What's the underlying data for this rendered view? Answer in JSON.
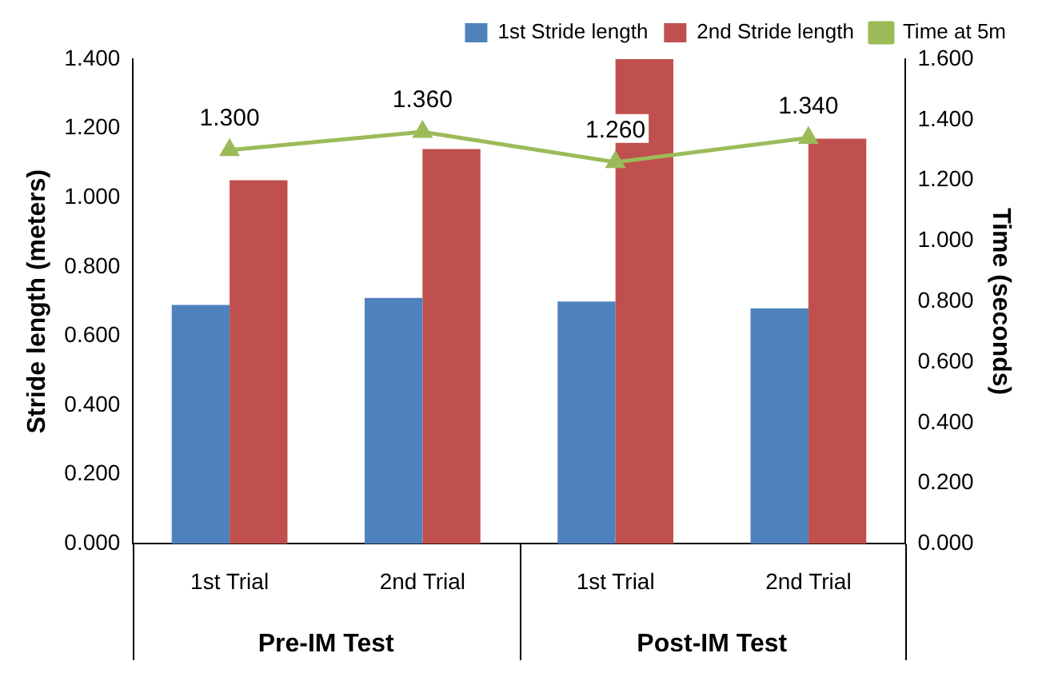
{
  "chart_data": {
    "type": "bar",
    "ylabel": "Stride length (meters)",
    "y2label": "Time (seconds)",
    "categories": [
      "1st Trial",
      "2nd Trial",
      "1st Trial",
      "2nd Trial"
    ],
    "annotations": [
      "Pre-IM Test",
      "Post-IM Test"
    ],
    "series": [
      {
        "name": "1st Stride length",
        "color": "#4f81bd",
        "values": [
          0.69,
          0.71,
          0.7,
          0.68
        ]
      },
      {
        "name": "2nd Stride length",
        "color": "#c0504d",
        "values": [
          1.05,
          1.14,
          1.4,
          1.17
        ]
      },
      {
        "name": "Time at 5m",
        "type": "line",
        "axis": "y2",
        "color": "#9bbb59",
        "values": [
          1.3,
          1.36,
          1.26,
          1.34
        ],
        "value_labels": [
          "1.300",
          "1.360",
          "1.260",
          "1.340"
        ]
      }
    ],
    "ylim": [
      0,
      1.4
    ],
    "yticks": [
      {
        "value": 0,
        "label": "0.000"
      },
      {
        "value": 0.2,
        "label": "0.200"
      },
      {
        "value": 0.4,
        "label": "0.400"
      },
      {
        "value": 0.6,
        "label": "0.600"
      },
      {
        "value": 0.8,
        "label": "0.800"
      },
      {
        "value": 1.0,
        "label": "1.000"
      },
      {
        "value": 1.2,
        "label": "1.200"
      },
      {
        "value": 1.4,
        "label": "1.400"
      }
    ],
    "y2lim": [
      0,
      1.6
    ],
    "y2ticks": [
      {
        "value": 0,
        "label": "0.000"
      },
      {
        "value": 0.2,
        "label": "0.200"
      },
      {
        "value": 0.4,
        "label": "0.400"
      },
      {
        "value": 0.6,
        "label": "0.600"
      },
      {
        "value": 0.8,
        "label": "0.800"
      },
      {
        "value": 1.0,
        "label": "1.000"
      },
      {
        "value": 1.2,
        "label": "1.200"
      },
      {
        "value": 1.4,
        "label": "1.400"
      },
      {
        "value": 1.6,
        "label": "1.600"
      }
    ],
    "grid": false,
    "legend": "top right",
    "marker": "triangle",
    "line_style": "solid"
  }
}
